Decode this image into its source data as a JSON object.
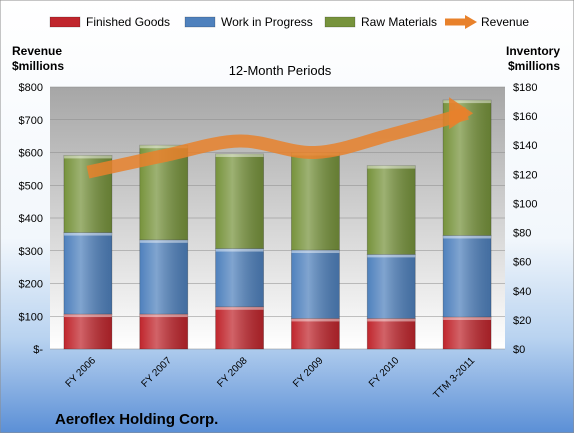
{
  "chart_data": {
    "type": "bar",
    "title": "12-Month Periods",
    "company": "Aeroflex Holding Corp.",
    "left_axis_label": [
      "Revenue",
      "$millions"
    ],
    "right_axis_label": [
      "Inventory",
      "$millions"
    ],
    "categories": [
      "FY 2006",
      "FY 2007",
      "FY 2008",
      "FY 2009",
      "FY 2010",
      "TTM 3-2011"
    ],
    "left_ylim": [
      0,
      800
    ],
    "left_ticks": [
      "$-",
      "$100",
      "$200",
      "$300",
      "$400",
      "$500",
      "$600",
      "$700",
      "$800"
    ],
    "right_ylim": [
      0,
      180
    ],
    "right_ticks": [
      "$0",
      "$20",
      "$40",
      "$60",
      "$80",
      "$100",
      "$120",
      "$140",
      "$160",
      "$180"
    ],
    "stacked": true,
    "series": [
      {
        "name": "Finished Goods",
        "axis": "right",
        "color": "#c0262d",
        "values": [
          24,
          24,
          29,
          21,
          21,
          22
        ]
      },
      {
        "name": "Work in Progress",
        "axis": "right",
        "color": "#4f81bd",
        "values": [
          56,
          51,
          40,
          47,
          44,
          56
        ]
      },
      {
        "name": "Raw Materials",
        "axis": "right",
        "color": "#77933c",
        "values": [
          53,
          65,
          65,
          67,
          61,
          93
        ]
      }
    ],
    "line_series": {
      "name": "Revenue",
      "axis": "left",
      "color": "#e8812b",
      "values": [
        540,
        590,
        635,
        600,
        655,
        720
      ]
    },
    "grid": true,
    "legend": "top"
  }
}
